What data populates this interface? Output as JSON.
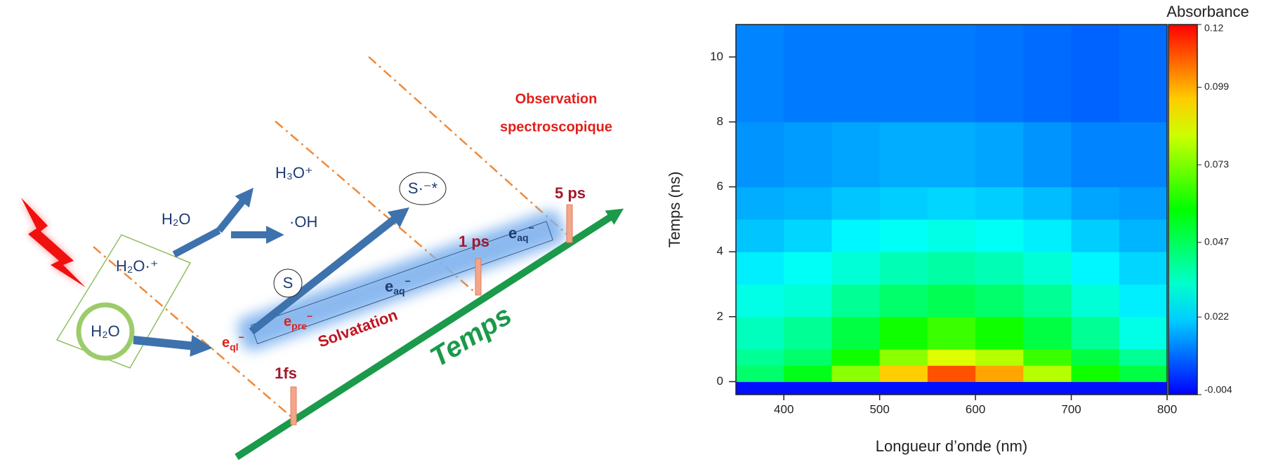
{
  "diagram": {
    "observation": [
      "Observation",
      "spectroscopique"
    ],
    "h3o": "H₃O⁺",
    "h2o_top": "H₂O",
    "oh": "·OH",
    "h2o_cation": "H₂O·⁺",
    "h2o_circle": "H₂O",
    "s": "S",
    "s_excited": "S·⁻*",
    "e_aq_upper": {
      "e": "e",
      "sub": "aq",
      "sup": "−"
    },
    "e_aq_lower": {
      "e": "e",
      "sub": "aq",
      "sup": "−"
    },
    "e_pre": {
      "e": "e",
      "sub": "pre",
      "sup": "−"
    },
    "e_ql": {
      "e": "e",
      "sub": "ql",
      "sup": "−"
    },
    "solvatation": "Solvatation",
    "temps": "Temps",
    "t_1fs": "1fs",
    "t_1ps": "1 ps",
    "t_5ps": "5 ps"
  },
  "chart_data": {
    "type": "heatmap",
    "xlabel": "Longueur d’onde (nm)",
    "ylabel": "Temps (ns)",
    "colorbar_label": "Absorbance",
    "xlim": [
      350,
      800
    ],
    "xticks": [
      400,
      500,
      600,
      700,
      800
    ],
    "ylim": [
      -0.4,
      11
    ],
    "yticks": [
      0,
      2,
      4,
      6,
      8,
      10
    ],
    "xbins": [
      350,
      400,
      450,
      500,
      550,
      600,
      650,
      700,
      750,
      800
    ],
    "ybins": [
      -0.4,
      0,
      0.5,
      1,
      2,
      3,
      4,
      5,
      6,
      8,
      11
    ],
    "values": [
      [
        -0.002,
        -0.002,
        -0.002,
        -0.002,
        -0.002,
        -0.002,
        -0.002,
        -0.002,
        -0.002
      ],
      [
        0.045,
        0.055,
        0.075,
        0.095,
        0.11,
        0.1,
        0.08,
        0.06,
        0.05
      ],
      [
        0.04,
        0.045,
        0.06,
        0.075,
        0.085,
        0.08,
        0.065,
        0.05,
        0.04
      ],
      [
        0.035,
        0.04,
        0.05,
        0.06,
        0.065,
        0.06,
        0.05,
        0.04,
        0.03
      ],
      [
        0.03,
        0.032,
        0.04,
        0.045,
        0.048,
        0.045,
        0.04,
        0.032,
        0.025
      ],
      [
        0.025,
        0.028,
        0.032,
        0.036,
        0.038,
        0.036,
        0.032,
        0.026,
        0.022
      ],
      [
        0.02,
        0.022,
        0.026,
        0.028,
        0.03,
        0.028,
        0.025,
        0.021,
        0.018
      ],
      [
        0.017,
        0.018,
        0.02,
        0.021,
        0.022,
        0.021,
        0.019,
        0.016,
        0.015
      ],
      [
        0.014,
        0.015,
        0.016,
        0.017,
        0.017,
        0.016,
        0.014,
        0.012,
        0.012
      ],
      [
        0.012,
        0.011,
        0.011,
        0.011,
        0.011,
        0.01,
        0.009,
        0.008,
        0.009
      ]
    ],
    "clim": [
      -0.004,
      0.12
    ],
    "cticks": [
      -0.004,
      0.022,
      0.047,
      0.073,
      0.099,
      0.12
    ],
    "colormap": "rainbow"
  }
}
